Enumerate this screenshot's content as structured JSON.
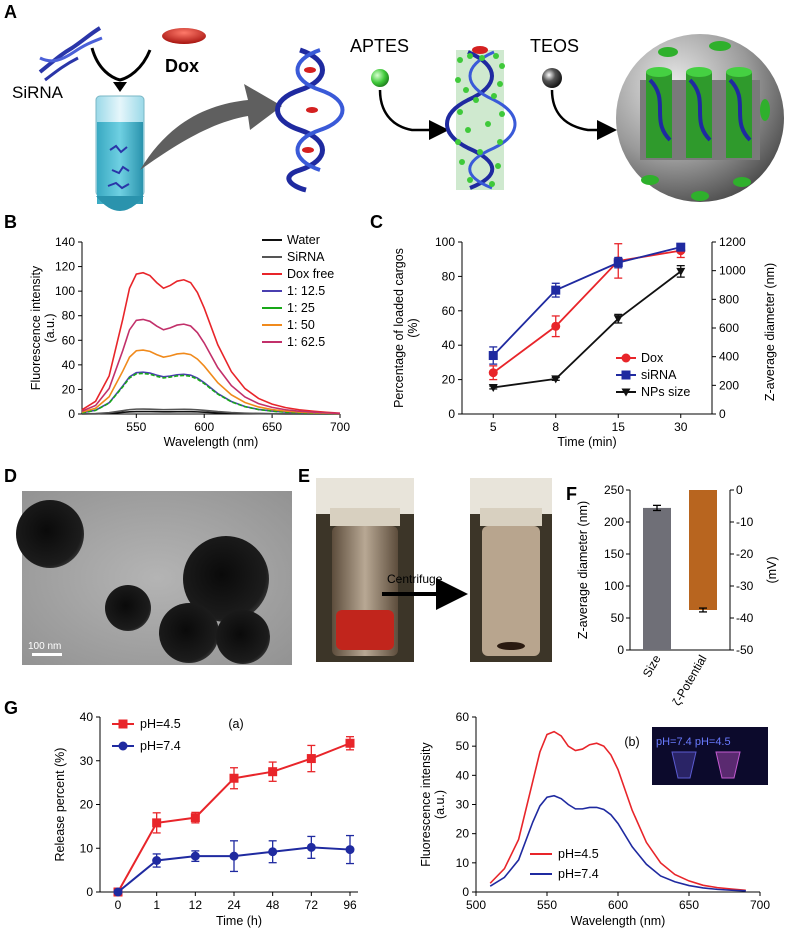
{
  "panel_letters": {
    "a": "A",
    "b": "B",
    "c": "C",
    "d": "D",
    "e": "E",
    "f": "F",
    "g": "G"
  },
  "schematic": {
    "sirna": "SiRNA",
    "dox": "Dox",
    "aptes": "APTES",
    "teos": "TEOS"
  },
  "tem": {
    "scale_label": "100 nm"
  },
  "vials": {
    "arrow_label": "Centrifuge"
  },
  "inset": {
    "label": "pH=7.4 pH=4.5"
  },
  "colors": {
    "red": "#e8252a",
    "blue": "#1f2aa0",
    "black": "#111111",
    "green": "#18a818",
    "orange": "#f08a1c",
    "magenta": "#c2306a",
    "purple": "#4a3fb0",
    "gray": "#555555",
    "brown": "#b8651f",
    "bargray": "#6f6f77"
  },
  "chart_data": [
    {
      "id": "B",
      "type": "line",
      "title": "",
      "xlabel": "Wavelength (nm)",
      "ylabel": "Fluorescence intensity\n(a.u.)",
      "xlim": [
        510,
        700
      ],
      "ylim": [
        0,
        140
      ],
      "xticks": [
        550,
        600,
        650,
        700
      ],
      "yticks": [
        0,
        20,
        40,
        60,
        80,
        100,
        120,
        140
      ],
      "x": [
        510,
        520,
        530,
        540,
        545,
        550,
        555,
        560,
        565,
        570,
        575,
        580,
        585,
        590,
        595,
        600,
        610,
        620,
        630,
        640,
        650,
        660,
        670,
        680,
        690,
        700
      ],
      "profile": [
        0.03,
        0.09,
        0.27,
        0.67,
        0.89,
        0.99,
        1.0,
        0.98,
        0.93,
        0.89,
        0.91,
        0.94,
        0.95,
        0.93,
        0.86,
        0.75,
        0.49,
        0.3,
        0.18,
        0.11,
        0.07,
        0.045,
        0.03,
        0.02,
        0.012,
        0.006
      ],
      "legend_position": "top-right",
      "series": [
        {
          "name": "Water",
          "peak": 2,
          "color": "#111111"
        },
        {
          "name": "SiRNA",
          "peak": 4,
          "color": "#555555"
        },
        {
          "name": "Dox free",
          "peak": 115,
          "color": "#e8252a"
        },
        {
          "name": "1: 12.5",
          "peak": 34,
          "color": "#4a3fb0"
        },
        {
          "name": "1: 25",
          "peak": 33,
          "color": "#18a818"
        },
        {
          "name": "1: 50",
          "peak": 52,
          "color": "#f08a1c"
        },
        {
          "name": "1: 62.5",
          "peak": 77,
          "color": "#c2306a"
        }
      ]
    },
    {
      "id": "C",
      "type": "line",
      "xlabel": "Time (min)",
      "ylabel": "Percentage of loaded cargos\n(%)",
      "y2label": "Z-average diameter (nm)",
      "categories": [
        "5",
        "8",
        "15",
        "30"
      ],
      "ylim": [
        0,
        100
      ],
      "yticks": [
        0,
        20,
        40,
        60,
        80,
        100
      ],
      "y2lim": [
        0,
        1200
      ],
      "y2ticks": [
        0,
        200,
        400,
        600,
        800,
        1000,
        1200
      ],
      "legend_position": "bottom-right",
      "series": [
        {
          "name": "Dox",
          "axis": "left",
          "values": [
            24,
            51,
            89,
            95
          ],
          "errors": [
            4,
            6,
            10,
            4
          ],
          "color": "#e8252a",
          "marker": "circle"
        },
        {
          "name": "siRNA",
          "axis": "left",
          "values": [
            34,
            72,
            88,
            97
          ],
          "errors": [
            5,
            4,
            3,
            2
          ],
          "color": "#1f2aa0",
          "marker": "square"
        },
        {
          "name": "NPs size",
          "axis": "right",
          "values": [
            185,
            245,
            665,
            995
          ],
          "errors": [
            10,
            10,
            30,
            40
          ],
          "color": "#111111",
          "marker": "triangle-down"
        }
      ]
    },
    {
      "id": "F",
      "type": "bar",
      "categories": [
        "Size",
        "ζ-Potential"
      ],
      "ylabel": "Z-average diameter (nm)",
      "y2label": "(mV)",
      "ylim": [
        0,
        250
      ],
      "yticks": [
        0,
        50,
        100,
        150,
        200,
        250
      ],
      "y2lim": [
        -50,
        0
      ],
      "y2ticks": [
        0,
        -10,
        -20,
        -30,
        -40,
        -50
      ],
      "values": [
        {
          "category": "Size",
          "axis": "left",
          "value": 222,
          "error": 4,
          "color": "#6f6f77"
        },
        {
          "category": "ζ-Potential",
          "axis": "right",
          "value": -37.5,
          "error": 0.6,
          "color": "#b8651f"
        }
      ]
    },
    {
      "id": "Ga",
      "type": "line",
      "title": "(a)",
      "xlabel": "Time (h)",
      "ylabel": "Release percent (%)",
      "categories": [
        "0",
        "1",
        "12",
        "24",
        "48",
        "72",
        "96"
      ],
      "ylim": [
        0,
        40
      ],
      "yticks": [
        0,
        10,
        20,
        30,
        40
      ],
      "legend_position": "top-left",
      "series": [
        {
          "name": "pH=4.5",
          "values": [
            0,
            15.8,
            17,
            26,
            27.5,
            30.5,
            34
          ],
          "errors": [
            0,
            2.3,
            1.2,
            2.4,
            2.2,
            3,
            1.5
          ],
          "color": "#e8252a",
          "marker": "square"
        },
        {
          "name": "pH=7.4",
          "values": [
            0,
            7.2,
            8.2,
            8.2,
            9.2,
            10.2,
            9.7
          ],
          "errors": [
            0,
            1.5,
            1.2,
            3.5,
            2.5,
            2.5,
            3.2
          ],
          "color": "#1f2aa0",
          "marker": "circle"
        }
      ]
    },
    {
      "id": "Gb",
      "type": "line",
      "title": "(b)",
      "xlabel": "Wavelength (nm)",
      "ylabel": "Fluorescence intensity\n(a.u.)",
      "xlim": [
        500,
        700
      ],
      "ylim": [
        0,
        60
      ],
      "xticks": [
        500,
        550,
        600,
        650,
        700
      ],
      "yticks": [
        0,
        10,
        20,
        30,
        40,
        50,
        60
      ],
      "legend_position": "bottom-left",
      "series": [
        {
          "name": "pH=4.5",
          "color": "#e8252a",
          "x": [
            510,
            520,
            530,
            540,
            545,
            550,
            555,
            560,
            565,
            570,
            575,
            580,
            585,
            590,
            595,
            600,
            610,
            620,
            630,
            640,
            650,
            660,
            670,
            680,
            690
          ],
          "values": [
            3,
            8,
            18,
            38,
            48,
            54,
            55,
            53.5,
            50,
            48.5,
            49,
            50.5,
            51,
            50,
            47,
            42,
            28,
            17,
            10,
            6,
            3.8,
            2.3,
            1.5,
            1,
            0.6
          ]
        },
        {
          "name": "pH=7.4",
          "color": "#1f2aa0",
          "x": [
            510,
            520,
            530,
            540,
            545,
            550,
            555,
            560,
            565,
            570,
            575,
            580,
            585,
            590,
            595,
            600,
            610,
            620,
            630,
            640,
            650,
            660,
            670,
            680,
            690
          ],
          "values": [
            2,
            5,
            11,
            24,
            29.5,
            32.5,
            33,
            32,
            30,
            28.5,
            28.5,
            29,
            29,
            28.3,
            26.5,
            23.5,
            15.5,
            9.5,
            5.5,
            3.5,
            2.2,
            1.4,
            0.9,
            0.6,
            0.4
          ]
        }
      ]
    }
  ]
}
